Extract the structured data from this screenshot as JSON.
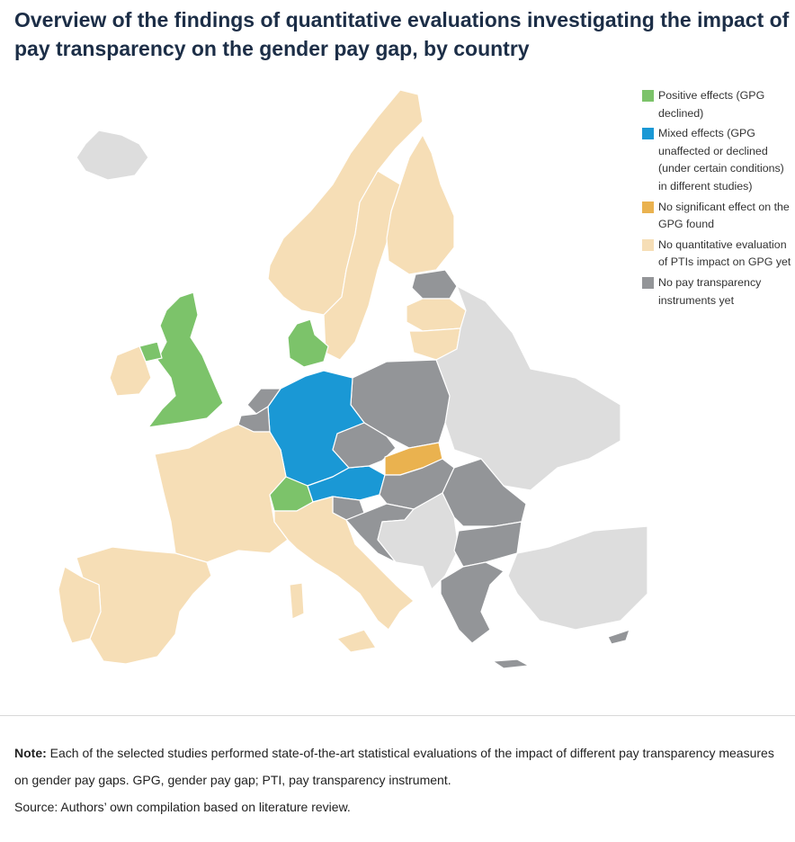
{
  "title": "Overview of the findings of quantitative evaluations investigating the impact of pay transparency on the gender pay gap, by country",
  "colors": {
    "positive": "#7cc36a",
    "mixed": "#1a98d5",
    "no_significant": "#eab24f",
    "no_evaluation": "#f6deb6",
    "no_instruments": "#939598",
    "outside": "#dddddd"
  },
  "legend": [
    {
      "key": "positive",
      "label": "Positive effects (GPG declined)"
    },
    {
      "key": "mixed",
      "label": "Mixed effects (GPG unaffected or declined (under certain conditions) in different studies)"
    },
    {
      "key": "no_significant",
      "label": "No significant effect on the GPG found"
    },
    {
      "key": "no_evaluation",
      "label": "No quantitative evaluation of PTIs impact on GPG yet"
    },
    {
      "key": "no_instruments",
      "label": "No pay transparency instruments yet"
    }
  ],
  "countries": {
    "positive": [
      "United Kingdom",
      "Denmark",
      "Switzerland"
    ],
    "mixed": [
      "Germany",
      "Austria"
    ],
    "no_significant": [
      "Slovakia"
    ],
    "no_evaluation": [
      "Ireland",
      "France",
      "Spain",
      "Portugal",
      "Italy",
      "Norway",
      "Sweden",
      "Finland",
      "Lithuania",
      "Latvia",
      "Luxembourg"
    ],
    "no_instruments": [
      "Netherlands",
      "Belgium",
      "Poland",
      "Czechia",
      "Hungary",
      "Romania",
      "Bulgaria",
      "Greece",
      "Croatia",
      "Slovenia",
      "Estonia",
      "Cyprus"
    ]
  },
  "note": {
    "label": "Note:",
    "text": "Each of the selected studies performed state-of-the-art statistical evaluations of the impact of different pay transparency measures on gender pay gaps. GPG, gender pay gap; PTI, pay transparency instrument.",
    "source": "Source: Authors’ own compilation based on literature review."
  }
}
